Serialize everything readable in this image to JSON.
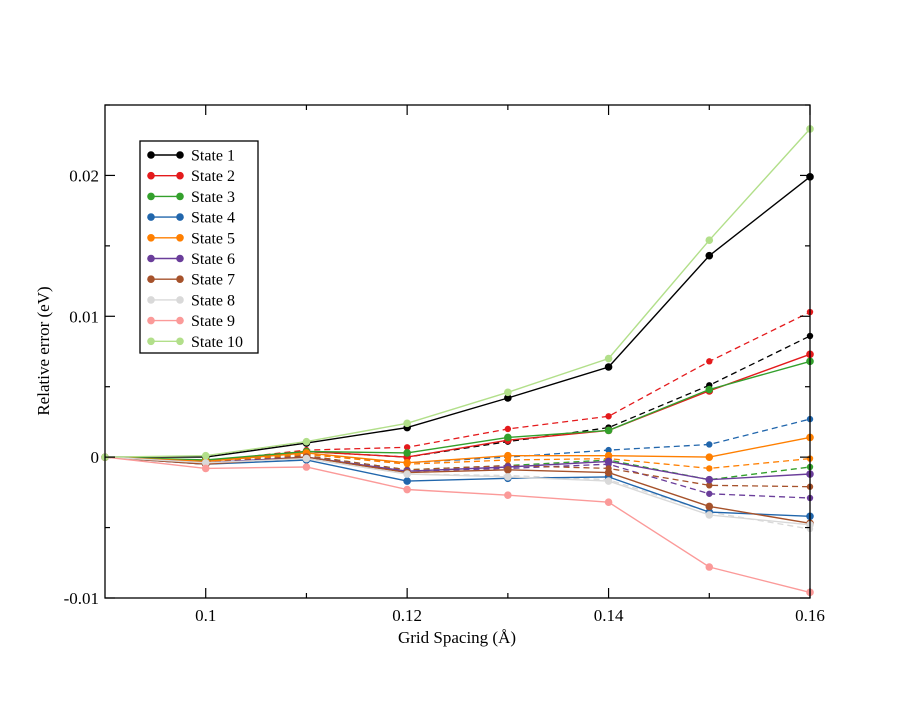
{
  "chart_data": {
    "type": "line",
    "title": "",
    "xlabel": "Grid Spacing (Å)",
    "ylabel": "Relative error (eV)",
    "xlim": [
      0.09,
      0.16
    ],
    "ylim": [
      -0.01,
      0.025
    ],
    "x": [
      0.09,
      0.1,
      0.11,
      0.12,
      0.13,
      0.14,
      0.15,
      0.16
    ],
    "x_ticks": [
      {
        "value": 0.1,
        "label": "0.1"
      },
      {
        "value": 0.12,
        "label": "0.12"
      },
      {
        "value": 0.14,
        "label": "0.14"
      },
      {
        "value": 0.16,
        "label": "0.16"
      }
    ],
    "y_ticks": [
      {
        "value": -0.01,
        "label": "-0.01"
      },
      {
        "value": 0.0,
        "label": "0"
      },
      {
        "value": 0.01,
        "label": "0.01"
      },
      {
        "value": 0.02,
        "label": "0.02"
      }
    ],
    "legend_position": "top-left",
    "grid": false,
    "series": [
      {
        "name": "State 1",
        "color": "#000000",
        "values": [
          0,
          0.0,
          0.001,
          0.0021,
          0.0042,
          0.0064,
          0.0143,
          0.0199
        ],
        "dashed_values": [
          0,
          -0.0003,
          0.0004,
          0.0,
          0.0011,
          0.0021,
          0.0051,
          0.0086
        ]
      },
      {
        "name": "State 2",
        "color": "#e41a1c",
        "values": [
          0,
          -0.0003,
          0.0004,
          0.0,
          0.0012,
          0.0019,
          0.0047,
          0.0073
        ],
        "dashed_values": [
          0,
          -0.0003,
          0.0005,
          0.0007,
          0.002,
          0.0029,
          0.0068,
          0.0103
        ]
      },
      {
        "name": "State 3",
        "color": "#33a02c",
        "values": [
          0,
          -0.0002,
          0.0004,
          0.0003,
          0.0014,
          0.0019,
          0.0048,
          0.0068
        ],
        "dashed_values": [
          0,
          -0.0004,
          0.0001,
          -0.0009,
          -0.0006,
          -0.0002,
          -0.0016,
          -0.0007
        ]
      },
      {
        "name": "State 4",
        "color": "#2166ac",
        "values": [
          0,
          -0.0005,
          -0.0002,
          -0.0017,
          -0.0015,
          -0.0014,
          -0.0039,
          -0.0042
        ],
        "dashed_values": [
          0,
          -0.0003,
          0.0002,
          -0.0004,
          0.0,
          0.0005,
          0.0009,
          0.0027
        ]
      },
      {
        "name": "State 5",
        "color": "#ff7f00",
        "values": [
          0,
          -0.0003,
          0.0003,
          -0.0004,
          0.0001,
          0.0001,
          0.0,
          0.0014
        ],
        "dashed_values": [
          0,
          -0.0004,
          0.0002,
          -0.0005,
          -0.0002,
          -0.0001,
          -0.0008,
          -0.0001
        ]
      },
      {
        "name": "State 6",
        "color": "#6a3d9a",
        "values": [
          0,
          -0.0004,
          0.0,
          -0.001,
          -0.0007,
          -0.0003,
          -0.0016,
          -0.0012
        ],
        "dashed_values": [
          0,
          -0.0005,
          0.0,
          -0.001,
          -0.0008,
          -0.0005,
          -0.0026,
          -0.0029
        ]
      },
      {
        "name": "State 7",
        "color": "#a6522b",
        "values": [
          0,
          -0.0005,
          0.0,
          -0.0011,
          -0.0009,
          -0.0011,
          -0.0035,
          -0.0047
        ],
        "dashed_values": [
          0,
          -0.0004,
          0.0001,
          -0.0009,
          -0.0006,
          -0.0008,
          -0.002,
          -0.0021
        ]
      },
      {
        "name": "State 8",
        "color": "#d9d9d9",
        "values": [
          0,
          -0.0004,
          -0.0001,
          -0.0012,
          -0.0014,
          -0.0017,
          -0.0041,
          -0.0048
        ],
        "dashed_values": [
          0,
          -0.0004,
          -0.0001,
          -0.0012,
          -0.0013,
          -0.0016,
          -0.0039,
          -0.0051
        ]
      },
      {
        "name": "State 9",
        "color": "#fb9a99",
        "values": [
          0,
          -0.0008,
          -0.0007,
          -0.0023,
          -0.0027,
          -0.0032,
          -0.0078,
          -0.0096
        ],
        "dashed_values": null
      },
      {
        "name": "State 10",
        "color": "#b2df8a",
        "values": [
          0,
          0.0001,
          0.0011,
          0.0024,
          0.0046,
          0.007,
          0.0154,
          0.0233
        ],
        "dashed_values": null
      }
    ]
  }
}
